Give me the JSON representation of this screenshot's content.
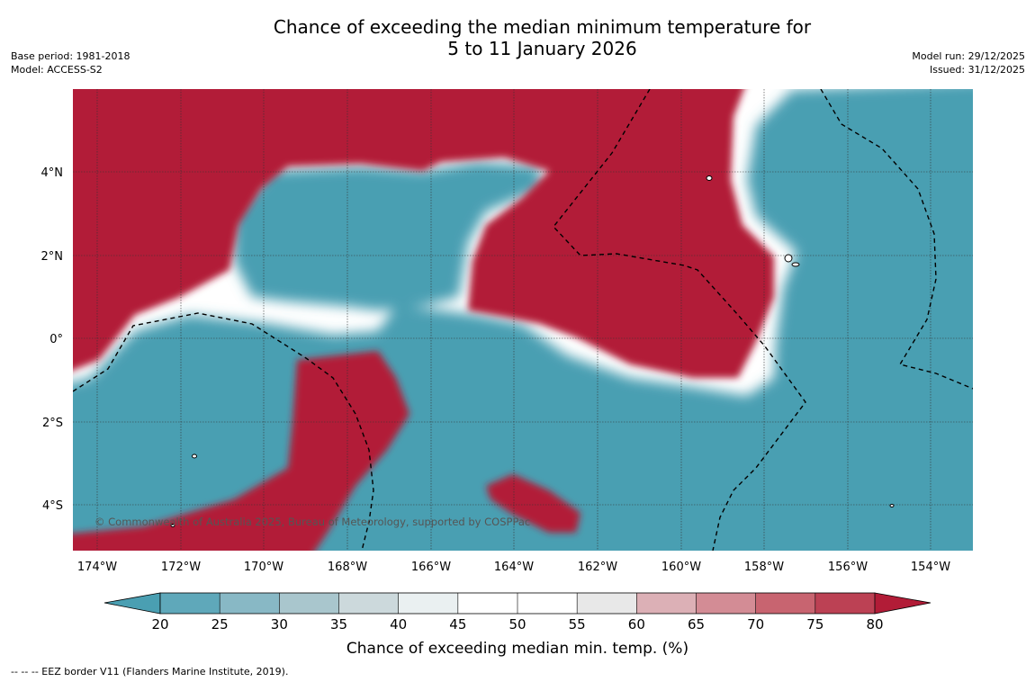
{
  "title": {
    "line1": "Chance of exceeding the median minimum temperature for",
    "line2": "5 to 11 January 2026"
  },
  "meta_left": {
    "base_period": "Base period: 1981-2018",
    "model": "Model: ACCESS-S2"
  },
  "meta_right": {
    "model_run": "Model run: 29/12/2025",
    "issued": "Issued: 31/12/2025"
  },
  "map": {
    "longitude_labels": [
      "174°W",
      "172°W",
      "170°W",
      "168°W",
      "166°W",
      "164°W",
      "162°W",
      "160°W",
      "158°W",
      "156°W",
      "154°W"
    ],
    "latitude_labels": [
      "4°N",
      "2°N",
      "0°",
      "2°S",
      "4°S"
    ],
    "copyright": "© Commonwealth of Australia 2025, Bureau of Meteorology, supported by COSPPac",
    "colors": {
      "warm": "#b21c37",
      "cool": "#4a9fb2",
      "neutral": "#ffffff",
      "gridline": "#333333"
    }
  },
  "colorbar": {
    "ticks": [
      "20",
      "25",
      "30",
      "35",
      "40",
      "45",
      "50",
      "55",
      "60",
      "65",
      "70",
      "75",
      "80"
    ],
    "colors": [
      "#5fa8ba",
      "#88b8c5",
      "#a9c6cd",
      "#ccd9dc",
      "#eaf0f1",
      "#ffffff",
      "#ffffff",
      "#e8e8e8",
      "#dcb0b6",
      "#d38c95",
      "#c86470",
      "#bc4154"
    ],
    "low_extend_color": "#4a9fb2",
    "high_extend_color": "#b21c37",
    "label": "Chance of exceeding median min. temp. (%)"
  },
  "footnote": "--  --  -- EEZ border V11 (Flanders Marine Institute, 2019)."
}
